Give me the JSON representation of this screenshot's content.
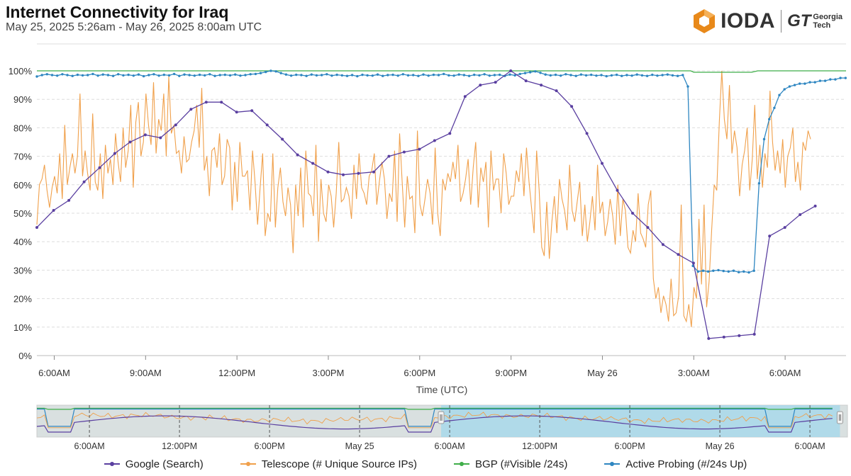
{
  "header": {
    "title": "Internet Connectivity for Iraq",
    "subtitle": "May 25, 2025 5:26am - May 26, 2025 8:00am UTC"
  },
  "brand": {
    "logo_text": "IODA",
    "partner_mark": "GT",
    "partner_line1": "Georgia",
    "partner_line2": "Tech",
    "logo_icon": "hexagon-cube-icon",
    "logo_color": "#e8891a"
  },
  "colors": {
    "google": "#5a3fa0",
    "telescope": "#f0a04b",
    "bgp": "#3fae49",
    "probing": "#2e86c1",
    "grid": "#dddddd",
    "navigator_bg": "#d9e0e0",
    "navigator_selected": "#a8d8ea"
  },
  "chart_data": [
    {
      "type": "line",
      "title": "",
      "xlabel": "Time (UTC)",
      "ylabel": "",
      "xlim": [
        5.43,
        32.0
      ],
      "ylim": [
        0,
        100
      ],
      "y_ticks": [
        "0%",
        "10%",
        "20%",
        "30%",
        "40%",
        "50%",
        "60%",
        "70%",
        "80%",
        "90%",
        "100%"
      ],
      "x_ticks": [
        {
          "x": 6,
          "label": "6:00AM"
        },
        {
          "x": 9,
          "label": "9:00AM"
        },
        {
          "x": 12,
          "label": "12:00PM"
        },
        {
          "x": 15,
          "label": "3:00PM"
        },
        {
          "x": 18,
          "label": "6:00PM"
        },
        {
          "x": 21,
          "label": "9:00PM"
        },
        {
          "x": 24,
          "label": "May 26"
        },
        {
          "x": 27,
          "label": "3:00AM"
        },
        {
          "x": 30,
          "label": "6:00AM"
        }
      ],
      "x_units": "hours since May 25, 2025 00:00 UTC",
      "grid": true,
      "series": [
        {
          "name": "Google (Search)",
          "x": [
            5.43,
            5.98,
            6.48,
            6.98,
            7.49,
            7.99,
            8.49,
            8.99,
            9.49,
            9.99,
            10.49,
            10.99,
            11.49,
            11.99,
            12.49,
            12.99,
            13.49,
            13.99,
            14.49,
            14.99,
            15.49,
            15.99,
            16.49,
            16.99,
            17.49,
            17.99,
            18.49,
            18.99,
            19.49,
            19.99,
            20.49,
            20.99,
            21.49,
            21.99,
            22.49,
            22.99,
            23.49,
            23.99,
            24.49,
            24.99,
            25.49,
            25.99,
            26.49,
            26.99,
            27.49,
            27.99,
            28.49,
            28.99,
            29.49,
            29.99,
            30.49,
            30.99
          ],
          "values": [
            45,
            51,
            54.5,
            61,
            66,
            71,
            75,
            77.5,
            76.5,
            81,
            86.5,
            89,
            89,
            85.5,
            86,
            81,
            76,
            70.5,
            67.5,
            64.5,
            63.5,
            64,
            64.5,
            70,
            71.5,
            72.5,
            75.5,
            78,
            91,
            95,
            96,
            100,
            96.5,
            95,
            93,
            87.5,
            78,
            67.5,
            58,
            50,
            45,
            39,
            35.5,
            32.5,
            6,
            6.5,
            7,
            7.5,
            42,
            45,
            49.5,
            52.5
          ]
        },
        {
          "name": "Telescope (# Unique Source IPs)",
          "x_start": 5.43,
          "x_step": 0.0833,
          "values": [
            46,
            60,
            62,
            67,
            58,
            52,
            59,
            63,
            57,
            71,
            55,
            81,
            60,
            66,
            71,
            64,
            70,
            92,
            63,
            72,
            64,
            58,
            85,
            61,
            58,
            71,
            55,
            74,
            64,
            69,
            60,
            78,
            68,
            61,
            80,
            66,
            72,
            88,
            59,
            82,
            89,
            70,
            75,
            92,
            81,
            74,
            96,
            71,
            83,
            79,
            92,
            70,
            98,
            78,
            81,
            71,
            72,
            64,
            77,
            68,
            69,
            75,
            79,
            88,
            73,
            94,
            65,
            70,
            56,
            72,
            73,
            66,
            78,
            60,
            63,
            76,
            73,
            51,
            68,
            54,
            75,
            63,
            63,
            65,
            51,
            72,
            61,
            46,
            59,
            71,
            42,
            50,
            47,
            71,
            45,
            59,
            66,
            54,
            49,
            59,
            53,
            36,
            60,
            49,
            66,
            45,
            72,
            57,
            56,
            49,
            74,
            40,
            62,
            50,
            47,
            60,
            56,
            45,
            57,
            75,
            54,
            55,
            59,
            56,
            48,
            67,
            55,
            71,
            59,
            57,
            53,
            63,
            65,
            71,
            53,
            61,
            68,
            62,
            48,
            57,
            54,
            72,
            47,
            78,
            61,
            45,
            63,
            55,
            56,
            43,
            79,
            53,
            49,
            55,
            62,
            57,
            46,
            73,
            50,
            42,
            62,
            58,
            64,
            61,
            68,
            62,
            74,
            54,
            57,
            62,
            69,
            53,
            66,
            75,
            52,
            66,
            61,
            68,
            45,
            72,
            58,
            62,
            62,
            50,
            71,
            64,
            53,
            56,
            56,
            65,
            61,
            71,
            56,
            73,
            61,
            52,
            43,
            72,
            58,
            38,
            35,
            54,
            34,
            47,
            56,
            43,
            62,
            55,
            51,
            44,
            67,
            51,
            47,
            54,
            61,
            42,
            53,
            40,
            47,
            56,
            44,
            67,
            50,
            54,
            42,
            47,
            55,
            49,
            39,
            60,
            42,
            55,
            51,
            38,
            36,
            44,
            40,
            57,
            43,
            41,
            38,
            53,
            58,
            27,
            20,
            24,
            15,
            21,
            18,
            12,
            27,
            14,
            15,
            21,
            53,
            14,
            12,
            18,
            10,
            24,
            20,
            48,
            25,
            53,
            17,
            26,
            44,
            60,
            58,
            82,
            100,
            83,
            76,
            95,
            71,
            79,
            73,
            56,
            67,
            72,
            80,
            58,
            69,
            88,
            62,
            74,
            59,
            71,
            66,
            93,
            75,
            65,
            72,
            64,
            76,
            59,
            70,
            73,
            80,
            61,
            68,
            58,
            75,
            72,
            79,
            76
          ],
          "values_note": "estimated from chart, 5-minute resolution"
        },
        {
          "name": "BGP (#Visible /24s)",
          "x": [
            5.43,
            26.9,
            27.0,
            28.9,
            29.1,
            32.0
          ],
          "values": [
            100,
            100,
            99.5,
            99.5,
            100,
            100
          ]
        },
        {
          "name": "Active Probing (#/24s Up)",
          "x_start": 5.43,
          "x_step": 0.167,
          "values": [
            98,
            98.5,
            98.8,
            98.5,
            98.3,
            98.8,
            98.5,
            98.2,
            98.6,
            98.4,
            98.5,
            98.9,
            98.3,
            98.7,
            98.5,
            98.2,
            98.8,
            98.4,
            98.6,
            98.3,
            98.7,
            98.1,
            98.5,
            98.8,
            98.3,
            98.6,
            98.4,
            98.9,
            98.2,
            98.7,
            98.5,
            98.3,
            98.6,
            98.4,
            98.8,
            98.2,
            98.5,
            98.6,
            98.4,
            98.7,
            98.3,
            98.5,
            98.8,
            98.9,
            99.2,
            99.6,
            100,
            99.8,
            99.2,
            98.7,
            98.3,
            98.6,
            98.5,
            98.2,
            98.7,
            98.4,
            98.5,
            98.8,
            98.3,
            98.6,
            98.4,
            98.2,
            98.5,
            98.1,
            98.6,
            98.4,
            98.3,
            98.7,
            98.2,
            98.5,
            98.6,
            98.3,
            98.8,
            98.4,
            98.5,
            98.2,
            98.7,
            98.3,
            98.6,
            98.5,
            98.9,
            98.4,
            98.3,
            98.7,
            98.5,
            98.2,
            98.6,
            98.4,
            98.8,
            98.3,
            98.5,
            98.6,
            98.2,
            98.7,
            98.4,
            98.9,
            99.2,
            99.5,
            99.8,
            99.3,
            98.7,
            98.4,
            98.6,
            98.3,
            98.8,
            98.5,
            98.2,
            98.7,
            98.4,
            98.6,
            98.3,
            98.5,
            98.1,
            98.4,
            98.6,
            98.2,
            98.5,
            98.3,
            98.7,
            98.4,
            98.2,
            98.6,
            98.3,
            98.5,
            98.7,
            98.4,
            98.2,
            98.5,
            94.5,
            31.5,
            29.5,
            29.8,
            29.5,
            29.8,
            30,
            29.7,
            29.5,
            29.8,
            29.3,
            29.5,
            29.2,
            29.8,
            60.5,
            76,
            83,
            87,
            91.5,
            93.5,
            94.5,
            95,
            95.5,
            95.5,
            96,
            96,
            96.5,
            96.5,
            97,
            97,
            97.5,
            97.5,
            98,
            97.5
          ]
        }
      ]
    },
    {
      "type": "line",
      "title": "",
      "xlabel": "",
      "ylabel": "",
      "role": "navigator",
      "x_ticks": [
        {
          "x": 30,
          "label": "6:00AM"
        },
        {
          "x": 36,
          "label": "12:00PM"
        },
        {
          "x": 42,
          "label": "6:00PM"
        },
        {
          "x": 48,
          "label": "May 25"
        },
        {
          "x": 54,
          "label": "6:00AM"
        },
        {
          "x": 60,
          "label": "12:00PM"
        },
        {
          "x": 66,
          "label": "6:00PM"
        },
        {
          "x": 72,
          "label": "May 26"
        },
        {
          "x": 78,
          "label": "6:00AM"
        }
      ],
      "x_units": "hours since May 24, 2025 00:00 UTC",
      "xlim": [
        26.5,
        80.5
      ],
      "selected_range": [
        53.43,
        80.0
      ]
    }
  ],
  "legend": [
    {
      "label": "Google (Search)",
      "key": "google"
    },
    {
      "label": "Telescope (# Unique Source IPs)",
      "key": "telescope"
    },
    {
      "label": "BGP (#Visible /24s)",
      "key": "bgp"
    },
    {
      "label": "Active Probing (#/24s Up)",
      "key": "probing"
    }
  ]
}
